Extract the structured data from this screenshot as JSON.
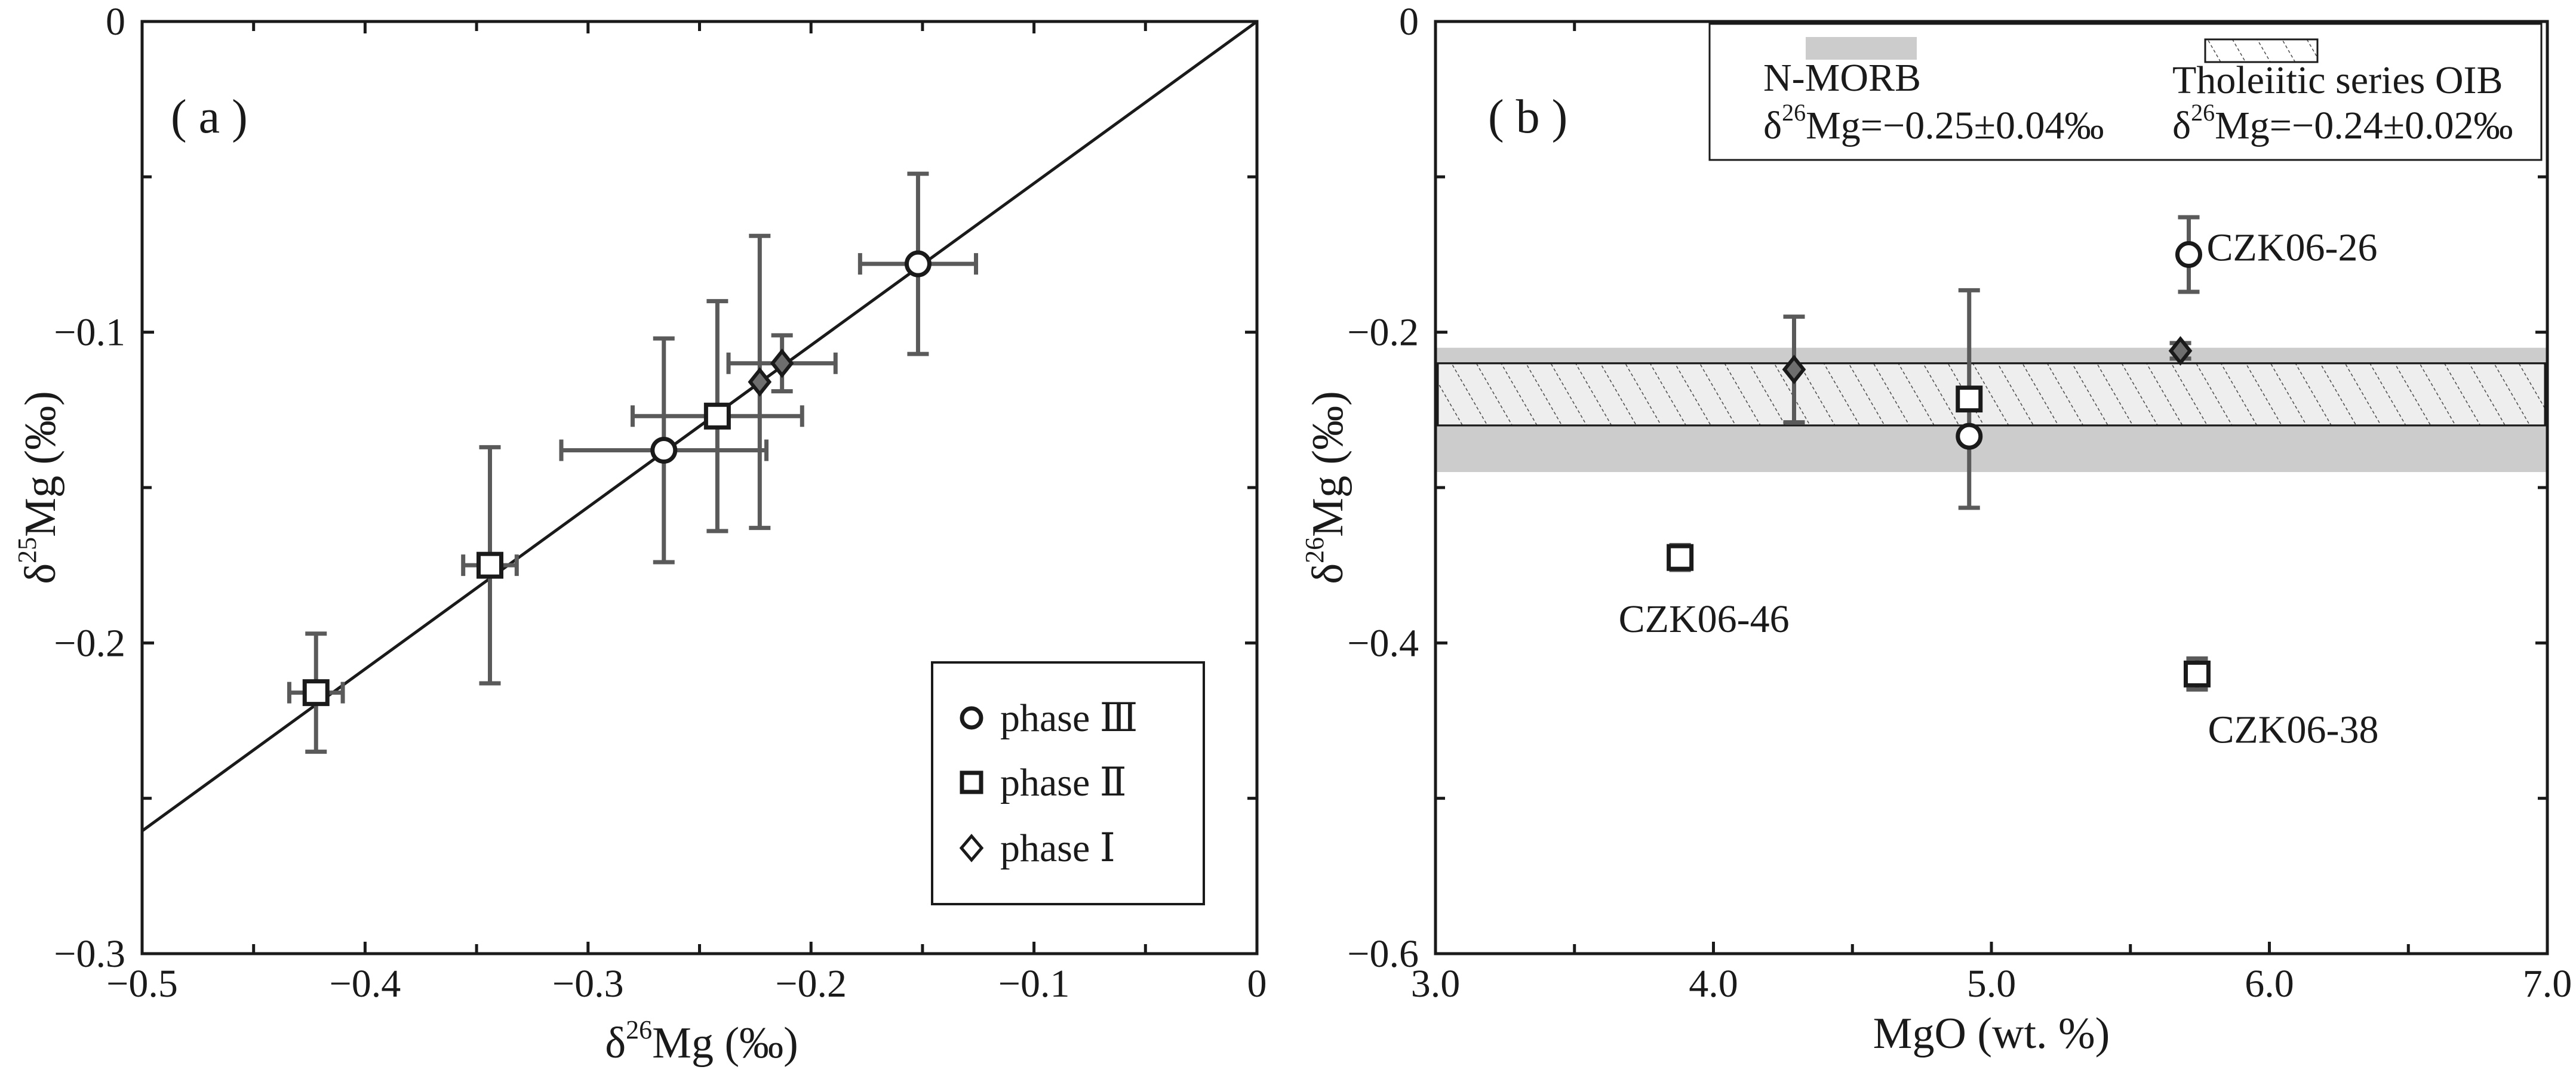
{
  "chart_data": [
    {
      "type": "scatter",
      "panel_label": "( a )",
      "xlabel_prefix": "δ",
      "xlabel_sup": "26",
      "xlabel_suffix": "Mg (‰)",
      "ylabel_prefix": "δ",
      "ylabel_sup": "25",
      "ylabel_suffix": "Mg (‰)",
      "xlim": [
        -0.5,
        0
      ],
      "ylim": [
        -0.3,
        0
      ],
      "x_ticks": [
        -0.5,
        -0.4,
        -0.3,
        -0.2,
        -0.1,
        0
      ],
      "x_tick_labels": [
        "−0.5",
        "−0.4",
        "−0.3",
        "−0.2",
        "−0.1",
        "0"
      ],
      "y_ticks": [
        -0.3,
        -0.2,
        -0.1,
        0
      ],
      "y_tick_labels": [
        "−0.3",
        "−0.2",
        "−0.1",
        "0"
      ],
      "fit_line": {
        "x": [
          -0.5,
          0
        ],
        "y": [
          -0.2605,
          0
        ]
      },
      "series": [
        {
          "name": "phase Ⅲ",
          "marker": "circle",
          "points": [
            {
              "x": -0.152,
              "y": -0.078,
              "xerr": 0.026,
              "yerr": 0.029
            },
            {
              "x": -0.266,
              "y": -0.138,
              "xerr": 0.046,
              "yerr": 0.036
            }
          ]
        },
        {
          "name": "phase Ⅱ",
          "marker": "square",
          "points": [
            {
              "x": -0.242,
              "y": -0.127,
              "xerr": 0.038,
              "yerr": 0.037
            },
            {
              "x": -0.344,
              "y": -0.175,
              "xerr": 0.012,
              "yerr": 0.038
            },
            {
              "x": -0.422,
              "y": -0.216,
              "xerr": 0.012,
              "yerr": 0.019
            }
          ]
        },
        {
          "name": "phase Ⅰ",
          "marker": "diamond",
          "points": [
            {
              "x": -0.213,
              "y": -0.11,
              "xerr": 0.024,
              "yerr": 0.009
            },
            {
              "x": -0.223,
              "y": -0.116,
              "xerr": 0.0,
              "yerr": 0.047
            }
          ]
        }
      ],
      "legend_placement": "bottom-right"
    },
    {
      "type": "scatter",
      "panel_label": "( b )",
      "xlabel": "MgO (wt. %)",
      "ylabel_prefix": "δ",
      "ylabel_sup": "26",
      "ylabel_suffix": "Mg (‰)",
      "xlim": [
        3.0,
        7.0
      ],
      "ylim": [
        -0.6,
        0
      ],
      "x_ticks": [
        3.0,
        4.0,
        5.0,
        6.0,
        7.0
      ],
      "x_tick_labels": [
        "3.0",
        "4.0",
        "5.0",
        "6.0",
        "7.0"
      ],
      "y_ticks": [
        -0.6,
        -0.4,
        -0.2,
        0
      ],
      "y_tick_labels": [
        "−0.6",
        "−0.4",
        "−0.2",
        "0"
      ],
      "bands": [
        {
          "label": "N-MORB",
          "formula_prefix": "δ",
          "formula_sup": "26",
          "formula_suffix": "Mg=−0.25±0.04‰",
          "center": -0.25,
          "half_width": 0.04,
          "fill": "#cccccc",
          "style": "solid"
        },
        {
          "label": "Tholeiitic series OIB",
          "formula_prefix": "δ",
          "formula_sup": "26",
          "formula_suffix": "Mg=−0.24±0.02‰",
          "center": -0.24,
          "half_width": 0.02,
          "fill": "none",
          "style": "hatched"
        }
      ],
      "series": [
        {
          "name": "phase Ⅲ",
          "marker": "circle",
          "points": [
            {
              "x": 5.71,
              "y": -0.15,
              "yerr": 0.024,
              "label": "CZK06-26"
            },
            {
              "x": 4.92,
              "y": -0.267,
              "yerr": 0.0
            }
          ]
        },
        {
          "name": "phase Ⅱ",
          "marker": "square",
          "points": [
            {
              "x": 4.92,
              "y": -0.243,
              "yerr": 0.07
            },
            {
              "x": 3.88,
              "y": -0.345,
              "yerr": 0.008,
              "label": "CZK06-46"
            },
            {
              "x": 5.74,
              "y": -0.42,
              "yerr": 0.01,
              "label": "CZK06-38"
            }
          ]
        },
        {
          "name": "phase Ⅰ",
          "marker": "diamond",
          "points": [
            {
              "x": 4.29,
              "y": -0.224,
              "yerr": 0.034
            },
            {
              "x": 5.68,
              "y": -0.212,
              "yerr": 0.005
            }
          ]
        }
      ],
      "legend_placement": "top"
    }
  ],
  "colors": {
    "errbar": "#5a5a5a",
    "band": "#cccccc",
    "axis": "#1a1a1a",
    "diamond_fill": "#6e6e6e"
  }
}
